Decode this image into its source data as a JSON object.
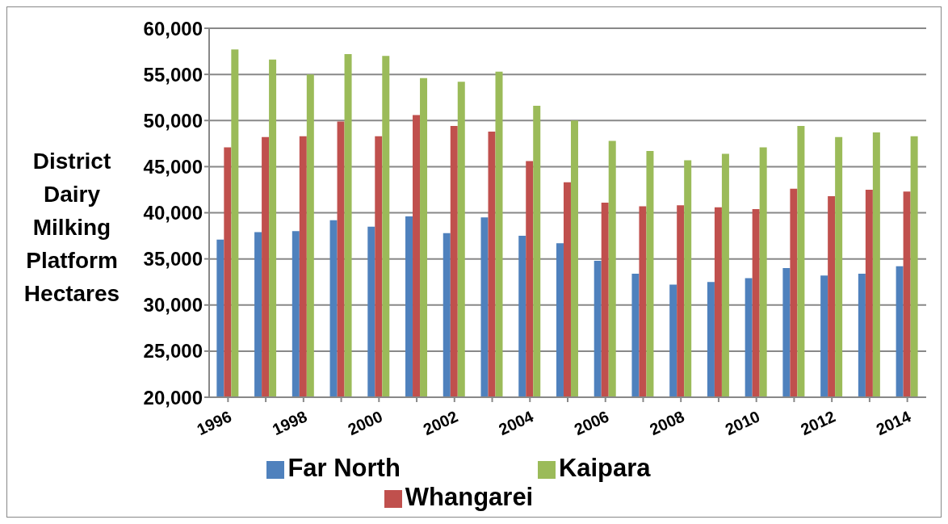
{
  "chart_data": {
    "type": "bar",
    "ylabel": "District Dairy Milking Platform Hectares",
    "categories": [
      "1996",
      null,
      "1998",
      null,
      "2000",
      null,
      "2002",
      null,
      "2004",
      null,
      "2006",
      null,
      "2008",
      null,
      "2010",
      null,
      "2012",
      null,
      "2014"
    ],
    "series": [
      {
        "name": "Far North",
        "color": "#4f81bd",
        "values": [
          37100,
          37900,
          38000,
          39200,
          38500,
          39600,
          37800,
          39500,
          37500,
          36700,
          34800,
          33400,
          32200,
          32500,
          32900,
          34000,
          33200,
          33400,
          34200
        ]
      },
      {
        "name": "Whangarei",
        "color": "#c0504d",
        "values": [
          47100,
          48200,
          48300,
          49900,
          48300,
          50600,
          49400,
          48800,
          45600,
          43300,
          41100,
          40700,
          40800,
          40600,
          40400,
          42600,
          41800,
          42500,
          42300
        ]
      },
      {
        "name": "Kaipara",
        "color": "#9bbb59",
        "values": [
          57700,
          56600,
          55000,
          57200,
          57000,
          54600,
          54200,
          55300,
          51600,
          50000,
          47800,
          46700,
          45700,
          46400,
          47100,
          49400,
          48200,
          48700,
          48300
        ]
      }
    ],
    "ylim": [
      20000,
      60000
    ],
    "yticks": [
      {
        "value": 20000,
        "label": "20,000"
      },
      {
        "value": 25000,
        "label": "25,000"
      },
      {
        "value": 30000,
        "label": "30,000"
      },
      {
        "value": 35000,
        "label": "35,000"
      },
      {
        "value": 40000,
        "label": "40,000"
      },
      {
        "value": 45000,
        "label": "45,000"
      },
      {
        "value": 50000,
        "label": "50,000"
      },
      {
        "value": 55000,
        "label": "55,000"
      },
      {
        "value": 60000,
        "label": "60,000"
      }
    ],
    "grid": "y",
    "legend": "bottom"
  }
}
